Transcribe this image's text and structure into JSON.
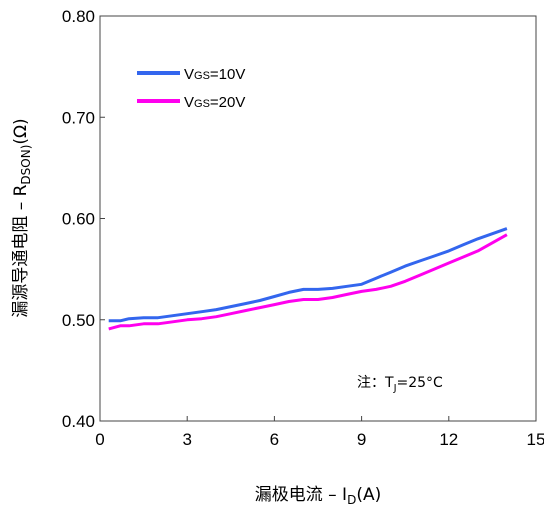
{
  "chart_data": {
    "type": "line",
    "xlabel_prefix": "漏极电流 – I",
    "xlabel_sub": "D",
    "xlabel_suffix": "(A)",
    "ylabel_prefix": "漏源导通电阻 – R",
    "ylabel_sub": "DSON)",
    "ylabel_suffix": "(Ω)",
    "xlim": [
      0,
      15
    ],
    "ylim": [
      0.4,
      0.8
    ],
    "x_ticks": [
      "0",
      "3",
      "6",
      "9",
      "12",
      "15"
    ],
    "y_ticks": [
      "0.40",
      "0.50",
      "0.60",
      "0.70",
      "0.80"
    ],
    "note_prefix": "注：T",
    "note_sub": "J",
    "note_suffix": "=25°C",
    "legend_placement": "top-left",
    "series": [
      {
        "name_prefix": "V",
        "name_sub": "GS",
        "name_suffix": "=10V",
        "color": "#3366ee",
        "x": [
          0.3,
          0.7,
          1.0,
          1.5,
          2.0,
          2.5,
          3.0,
          3.5,
          4.0,
          4.5,
          5.0,
          5.5,
          6.0,
          6.5,
          7.0,
          7.5,
          8.0,
          8.5,
          9.0,
          9.5,
          10.0,
          10.5,
          11.0,
          11.5,
          12.0,
          12.5,
          13.0,
          13.5,
          14.0
        ],
        "values": [
          0.499,
          0.499,
          0.501,
          0.502,
          0.502,
          0.504,
          0.506,
          0.508,
          0.51,
          0.513,
          0.516,
          0.519,
          0.523,
          0.527,
          0.53,
          0.53,
          0.531,
          0.533,
          0.535,
          0.541,
          0.547,
          0.553,
          0.558,
          0.563,
          0.568,
          0.574,
          0.58,
          0.585,
          0.59
        ]
      },
      {
        "name_prefix": "V",
        "name_sub": "GS",
        "name_suffix": "=20V",
        "color": "#ff00ee",
        "x": [
          0.3,
          0.7,
          1.0,
          1.5,
          2.0,
          2.5,
          3.0,
          3.5,
          4.0,
          4.5,
          5.0,
          5.5,
          6.0,
          6.5,
          7.0,
          7.5,
          8.0,
          8.5,
          9.0,
          9.5,
          10.0,
          10.5,
          11.0,
          11.5,
          12.0,
          12.5,
          13.0,
          13.5,
          14.0
        ],
        "values": [
          0.491,
          0.494,
          0.494,
          0.496,
          0.496,
          0.498,
          0.5,
          0.501,
          0.503,
          0.506,
          0.509,
          0.512,
          0.515,
          0.518,
          0.52,
          0.52,
          0.522,
          0.525,
          0.528,
          0.53,
          0.533,
          0.538,
          0.544,
          0.55,
          0.556,
          0.562,
          0.568,
          0.576,
          0.584
        ]
      }
    ]
  }
}
